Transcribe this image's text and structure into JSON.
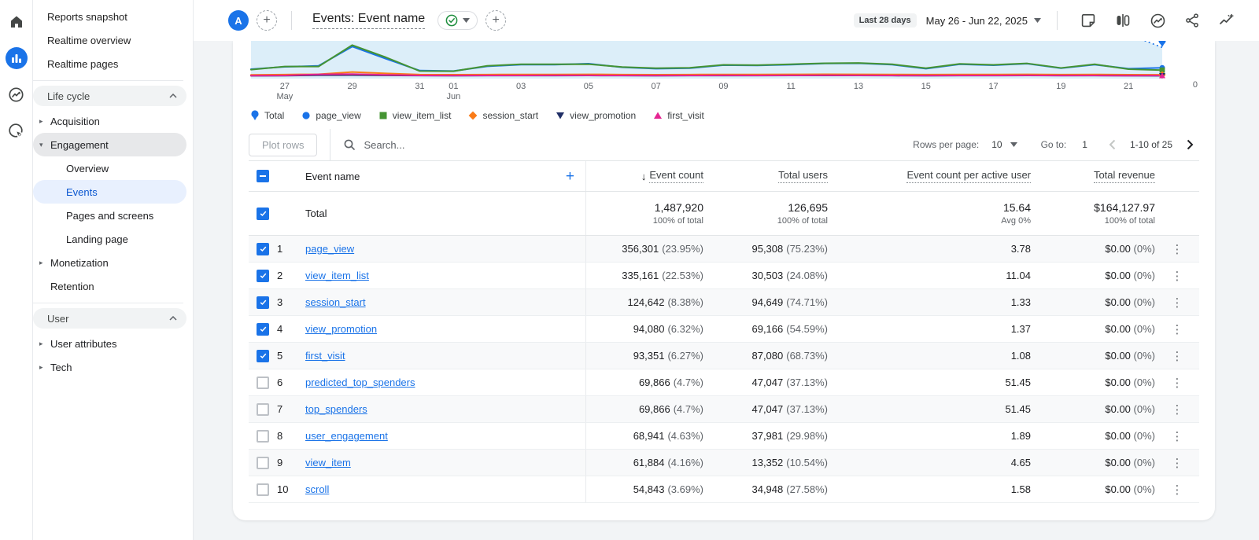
{
  "header": {
    "avatar_label": "A",
    "report_title": "Events: Event name",
    "date_range_label": "Last 28 days",
    "date_range": "May 26 - Jun 22, 2025",
    "icons": [
      "notes-icon",
      "comparison-icon",
      "insights-icon",
      "share-icon",
      "customize-report-icon"
    ]
  },
  "rail_icons": [
    "home-icon",
    "reports-icon",
    "explore-icon",
    "advertising-icon"
  ],
  "sidebar": {
    "items": [
      {
        "label": "Reports snapshot"
      },
      {
        "label": "Realtime overview"
      },
      {
        "label": "Realtime pages"
      }
    ],
    "lifecycle": {
      "header": "Life cycle",
      "acquisition": "Acquisition",
      "engagement": "Engagement",
      "children": {
        "overview": "Overview",
        "events": "Events",
        "pages": "Pages and screens",
        "landing": "Landing page"
      },
      "monetization": "Monetization",
      "retention": "Retention"
    },
    "user": {
      "header": "User",
      "attributes": "User attributes",
      "tech": "Tech"
    }
  },
  "controls": {
    "plot_rows": "Plot rows",
    "search_placeholder": "Search...",
    "rows_per_page_label": "Rows per page:",
    "rows_per_page_value": "10",
    "go_to_label": "Go to:",
    "go_to_value": "1",
    "pagination": "1-10 of 25"
  },
  "table": {
    "columns": {
      "dimension": "Event name",
      "event_count": "Event count",
      "total_users": "Total users",
      "per_active_user": "Event count per active user",
      "total_revenue": "Total revenue"
    },
    "total_row": {
      "label": "Total",
      "event_count": "1,487,920",
      "event_count_sub": "100% of total",
      "total_users": "126,695",
      "total_users_sub": "100% of total",
      "per_active_user": "15.64",
      "per_active_user_sub": "Avg 0%",
      "total_revenue": "$164,127.97",
      "total_revenue_sub": "100% of total"
    },
    "rows": [
      {
        "num": "1",
        "name": "page_view",
        "checked": true,
        "event_count": "356,301",
        "event_count_pct": "(23.95%)",
        "total_users": "95,308",
        "total_users_pct": "(75.23%)",
        "per_active_user": "3.78",
        "revenue": "$0.00",
        "revenue_pct": "(0%)"
      },
      {
        "num": "2",
        "name": "view_item_list",
        "checked": true,
        "event_count": "335,161",
        "event_count_pct": "(22.53%)",
        "total_users": "30,503",
        "total_users_pct": "(24.08%)",
        "per_active_user": "11.04",
        "revenue": "$0.00",
        "revenue_pct": "(0%)"
      },
      {
        "num": "3",
        "name": "session_start",
        "checked": true,
        "event_count": "124,642",
        "event_count_pct": "(8.38%)",
        "total_users": "94,649",
        "total_users_pct": "(74.71%)",
        "per_active_user": "1.33",
        "revenue": "$0.00",
        "revenue_pct": "(0%)"
      },
      {
        "num": "4",
        "name": "view_promotion",
        "checked": true,
        "event_count": "94,080",
        "event_count_pct": "(6.32%)",
        "total_users": "69,166",
        "total_users_pct": "(54.59%)",
        "per_active_user": "1.37",
        "revenue": "$0.00",
        "revenue_pct": "(0%)"
      },
      {
        "num": "5",
        "name": "first_visit",
        "checked": true,
        "event_count": "93,351",
        "event_count_pct": "(6.27%)",
        "total_users": "87,080",
        "total_users_pct": "(68.73%)",
        "per_active_user": "1.08",
        "revenue": "$0.00",
        "revenue_pct": "(0%)"
      },
      {
        "num": "6",
        "name": "predicted_top_spenders",
        "checked": false,
        "event_count": "69,866",
        "event_count_pct": "(4.7%)",
        "total_users": "47,047",
        "total_users_pct": "(37.13%)",
        "per_active_user": "51.45",
        "revenue": "$0.00",
        "revenue_pct": "(0%)"
      },
      {
        "num": "7",
        "name": "top_spenders",
        "checked": false,
        "event_count": "69,866",
        "event_count_pct": "(4.7%)",
        "total_users": "47,047",
        "total_users_pct": "(37.13%)",
        "per_active_user": "51.45",
        "revenue": "$0.00",
        "revenue_pct": "(0%)"
      },
      {
        "num": "8",
        "name": "user_engagement",
        "checked": false,
        "event_count": "68,941",
        "event_count_pct": "(4.63%)",
        "total_users": "37,981",
        "total_users_pct": "(29.98%)",
        "per_active_user": "1.89",
        "revenue": "$0.00",
        "revenue_pct": "(0%)"
      },
      {
        "num": "9",
        "name": "view_item",
        "checked": false,
        "event_count": "61,884",
        "event_count_pct": "(4.16%)",
        "total_users": "13,352",
        "total_users_pct": "(10.54%)",
        "per_active_user": "4.65",
        "revenue": "$0.00",
        "revenue_pct": "(0%)"
      },
      {
        "num": "10",
        "name": "scroll",
        "checked": false,
        "event_count": "54,843",
        "event_count_pct": "(3.69%)",
        "total_users": "34,948",
        "total_users_pct": "(27.58%)",
        "per_active_user": "1.58",
        "revenue": "$0.00",
        "revenue_pct": "(0%)"
      }
    ]
  },
  "chart_data": {
    "type": "line",
    "title": "Event count by Event name over time",
    "x_range": "May 26 - Jun 22, 2025 (28 days, last day partial)",
    "ylim": [
      0,
      40000
    ],
    "right_axis_label": "0",
    "grid": false,
    "legend_position": "bottom",
    "area_fill": "#dceef9",
    "x_ticks": [
      {
        "i": 1,
        "label": "27",
        "sub": "May"
      },
      {
        "i": 3,
        "label": "29"
      },
      {
        "i": 5,
        "label": "31"
      },
      {
        "i": 6,
        "label": "01",
        "sub": "Jun"
      },
      {
        "i": 8,
        "label": "03"
      },
      {
        "i": 10,
        "label": "05"
      },
      {
        "i": 12,
        "label": "07"
      },
      {
        "i": 14,
        "label": "09"
      },
      {
        "i": 16,
        "label": "11"
      },
      {
        "i": 18,
        "label": "13"
      },
      {
        "i": 20,
        "label": "15"
      },
      {
        "i": 22,
        "label": "17"
      },
      {
        "i": 24,
        "label": "19"
      },
      {
        "i": 26,
        "label": "21"
      }
    ],
    "series": [
      {
        "name": "Total",
        "marker": "pin",
        "color": "#1a73e8",
        "style": "area",
        "last_segment_dotted": true,
        "values": [
          48000,
          52000,
          55000,
          76000,
          62000,
          46000,
          45000,
          50000,
          52000,
          52000,
          54000,
          50000,
          48000,
          49000,
          52000,
          52000,
          53000,
          55000,
          55000,
          53000,
          48000,
          53000,
          52000,
          54000,
          49000,
          53000,
          47000,
          33000
        ]
      },
      {
        "name": "page_view",
        "marker": "circle",
        "color": "#1a73e8",
        "values": [
          10000,
          12500,
          13500,
          34000,
          21000,
          8500,
          8000,
          13000,
          14800,
          14800,
          15800,
          12000,
          10500,
          11000,
          14300,
          14000,
          14800,
          16000,
          16300,
          14800,
          10500,
          15200,
          14200,
          15800,
          11000,
          14800,
          10500,
          11500
        ]
      },
      {
        "name": "view_item_list",
        "marker": "square",
        "color": "#459433",
        "values": [
          9500,
          12800,
          12800,
          35500,
          22500,
          8000,
          7800,
          13500,
          15200,
          15200,
          15300,
          12300,
          11000,
          11500,
          14600,
          14300,
          15200,
          16300,
          16600,
          15200,
          11000,
          15600,
          14600,
          16100,
          11300,
          15200,
          10000,
          9000
        ]
      },
      {
        "name": "session_start",
        "marker": "diamond",
        "color": "#fa7b17",
        "values": [
          4000,
          4300,
          4600,
          7000,
          5500,
          4300,
          4200,
          4300,
          4400,
          4400,
          4500,
          4300,
          4200,
          4300,
          4400,
          4400,
          4500,
          4600,
          4500,
          4400,
          4300,
          4400,
          4400,
          4500,
          4300,
          4400,
          4200,
          4100
        ]
      },
      {
        "name": "view_promotion",
        "marker": "triangle-down",
        "color": "#202f66",
        "values": [
          3000,
          3100,
          3600,
          3800,
          3400,
          3200,
          3100,
          3200,
          3200,
          3200,
          3300,
          3200,
          3100,
          3200,
          3200,
          3200,
          3300,
          3300,
          3300,
          3200,
          3100,
          3200,
          3200,
          3300,
          3200,
          3200,
          3100,
          3000
        ]
      },
      {
        "name": "first_visit",
        "marker": "triangle-up",
        "color": "#e52592",
        "values": [
          3100,
          3300,
          4500,
          4800,
          4000,
          3300,
          3200,
          3300,
          3300,
          3400,
          3400,
          3300,
          3200,
          3300,
          3400,
          3300,
          3400,
          3500,
          3400,
          3300,
          3200,
          3300,
          3300,
          3400,
          3200,
          3300,
          3100,
          3300
        ]
      }
    ]
  }
}
